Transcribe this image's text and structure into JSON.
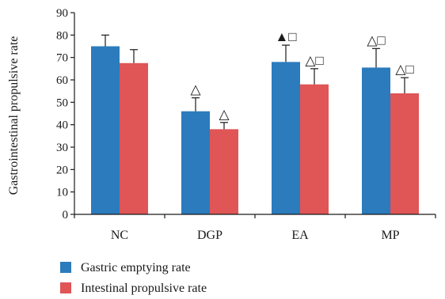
{
  "chart_data": {
    "type": "bar",
    "title": "",
    "xlabel": "",
    "ylabel": "Gastrointestinal propulsive rate",
    "ylim": [
      0,
      90
    ],
    "yticks": [
      0,
      10,
      20,
      30,
      40,
      50,
      60,
      70,
      80,
      90
    ],
    "grid": false,
    "legend_position": "bottom-left",
    "categories": [
      "NC",
      "DGP",
      "EA",
      "MP"
    ],
    "series": [
      {
        "name": "Gastric emptying rate",
        "color": "#2b7bbd",
        "values": [
          75,
          46,
          68,
          65.5
        ],
        "errors": [
          5,
          6,
          7.5,
          8.5
        ],
        "markers": [
          "",
          "△",
          "▲□",
          "△□"
        ]
      },
      {
        "name": "Intestinal propulsive rate",
        "color": "#e05556",
        "values": [
          67.5,
          38,
          58,
          54
        ],
        "errors": [
          6,
          3,
          7,
          7
        ],
        "markers": [
          "",
          "△",
          "△□",
          "△□"
        ]
      }
    ]
  }
}
